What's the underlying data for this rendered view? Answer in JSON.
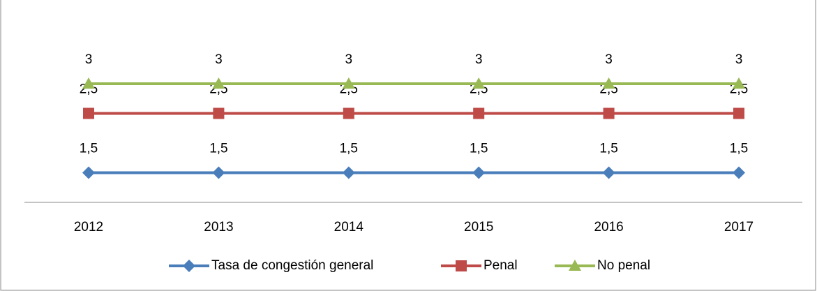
{
  "chart_data": {
    "type": "line",
    "categories": [
      "2012",
      "2013",
      "2014",
      "2015",
      "2016",
      "2017"
    ],
    "series": [
      {
        "name": "Tasa de congestión general",
        "color": "#4a7ebb",
        "marker": "diamond",
        "values": [
          1.5,
          1.5,
          1.5,
          1.5,
          1.5,
          1.5
        ],
        "value_labels": [
          "1,5",
          "1,5",
          "1,5",
          "1,5",
          "1,5",
          "1,5"
        ]
      },
      {
        "name": "Penal",
        "color": "#be4b48",
        "marker": "square",
        "values": [
          2.5,
          2.5,
          2.5,
          2.5,
          2.5,
          2.5
        ],
        "value_labels": [
          "2,5",
          "2,5",
          "2,5",
          "2,5",
          "2,5",
          "2,5"
        ]
      },
      {
        "name": "No penal",
        "color": "#98b954",
        "marker": "triangle",
        "values": [
          3,
          3,
          3,
          3,
          3,
          3
        ]
      }
    ],
    "ylim": [
      1,
      3.5
    ],
    "grid": false,
    "legend": "bottom"
  }
}
